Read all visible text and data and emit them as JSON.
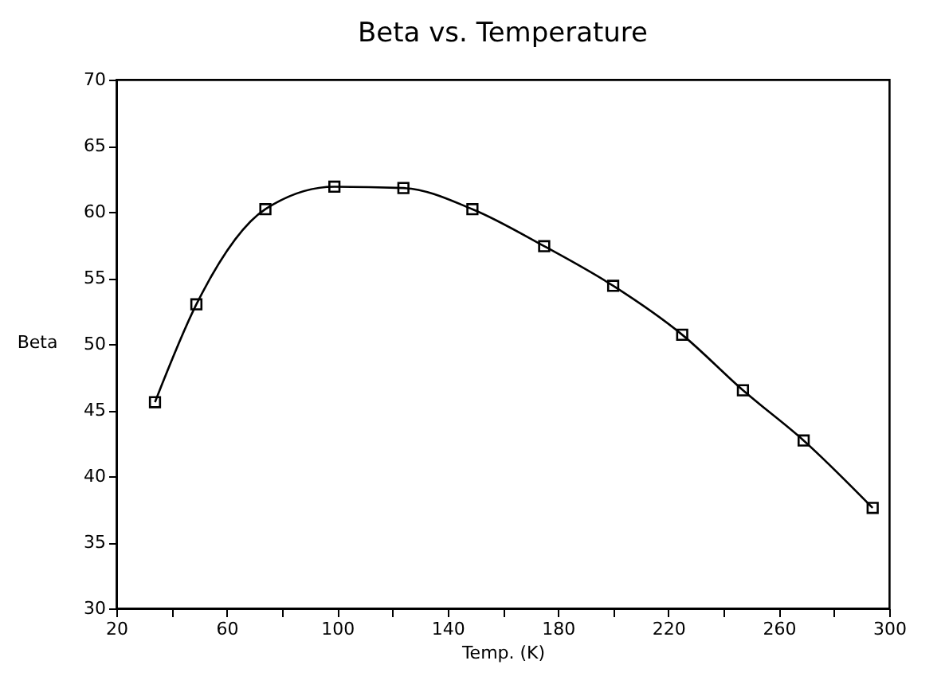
{
  "chart_data": {
    "type": "line",
    "title": "Beta vs. Temperature",
    "xlabel": "Temp. (K)",
    "ylabel": "Beta",
    "x": [
      34,
      49,
      74,
      99,
      124,
      149,
      175,
      200,
      225,
      247,
      269,
      294
    ],
    "series": [
      {
        "color": "#000000",
        "values": [
          45.6,
          53.0,
          60.2,
          61.9,
          61.8,
          60.2,
          57.4,
          54.4,
          50.7,
          46.5,
          42.7,
          37.6
        ]
      }
    ],
    "xlim": [
      20,
      300
    ],
    "xticks": [
      20,
      {
        "value": 40,
        "label": null
      },
      60,
      {
        "value": 80,
        "label": null
      },
      100,
      {
        "value": 120,
        "label": null
      },
      140,
      {
        "value": 160,
        "label": null
      },
      180,
      {
        "value": 200,
        "label": null
      },
      220,
      {
        "value": 240,
        "label": null
      },
      260,
      {
        "value": 280,
        "label": null
      },
      300
    ],
    "ylim": [
      30,
      70
    ],
    "yticks": [
      30,
      35,
      40,
      45,
      50,
      55,
      60,
      65,
      70
    ],
    "grid": false,
    "marker": "square",
    "line_style": "solid"
  }
}
